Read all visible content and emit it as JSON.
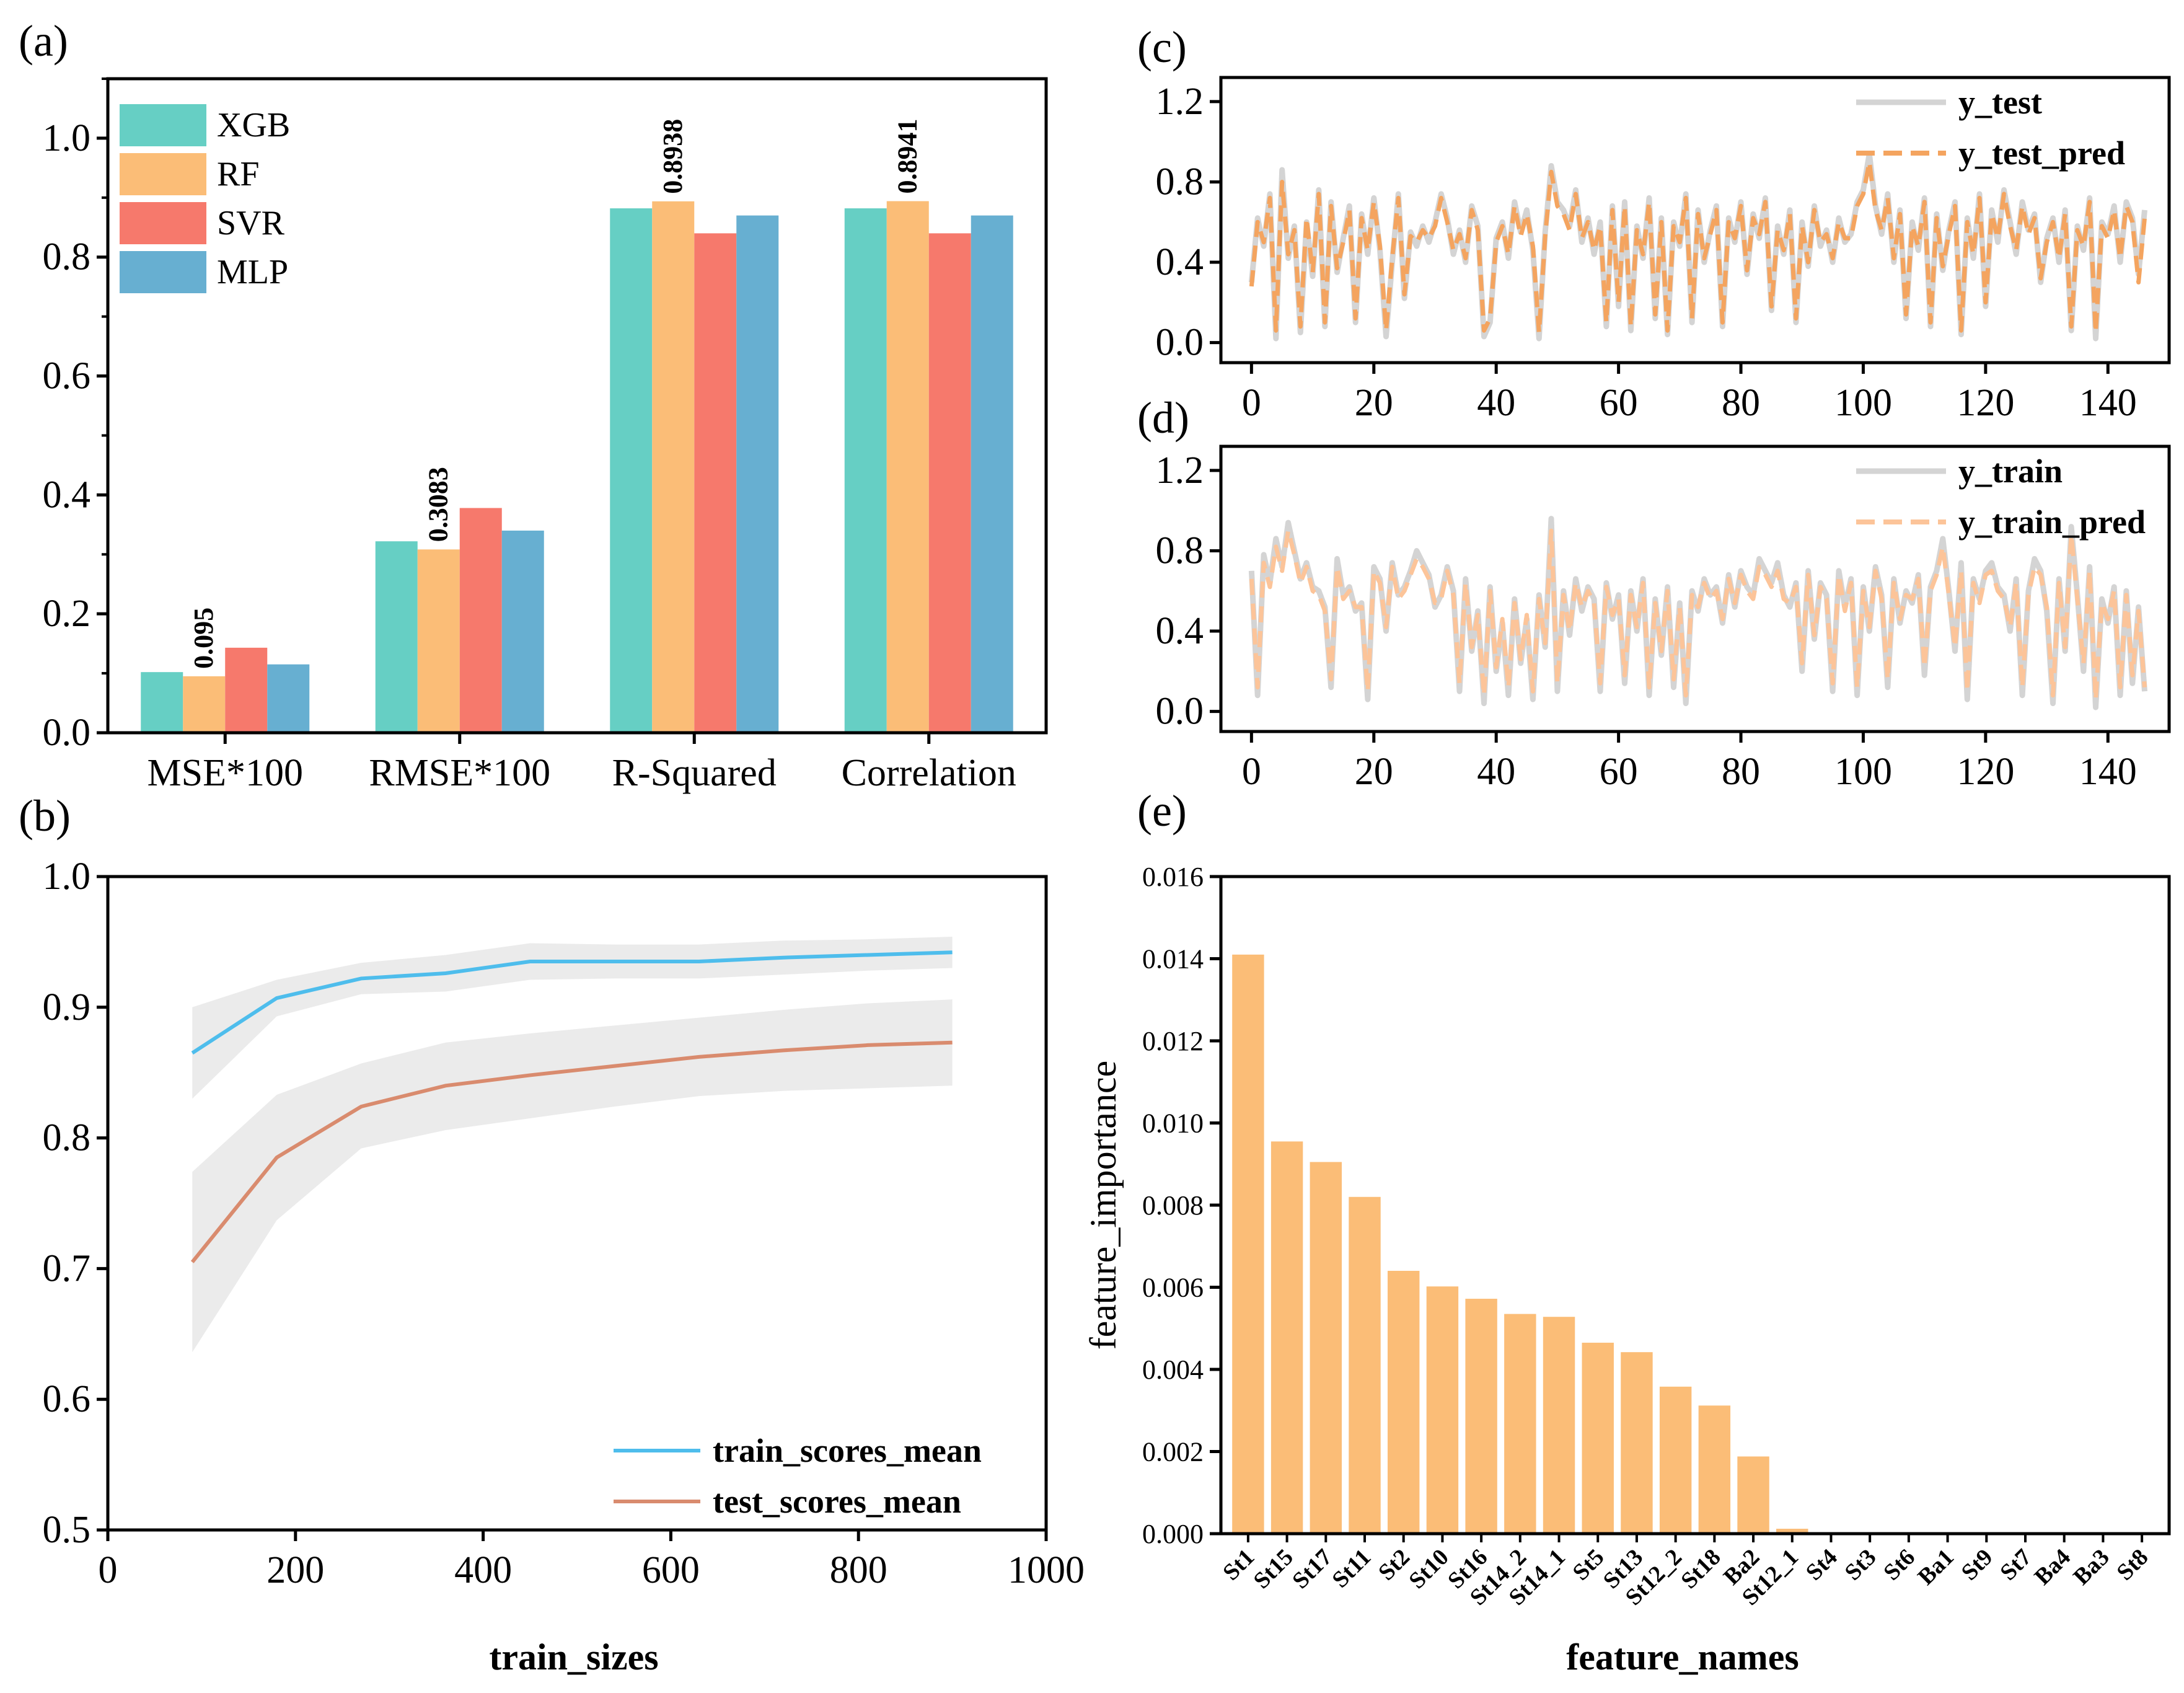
{
  "chart_data": [
    {
      "id": "a",
      "panel_label": "(a)",
      "type": "bar",
      "categories": [
        "MSE*100",
        "RMSE*100",
        "R-Squared",
        "Correlation"
      ],
      "series": [
        {
          "name": "XGB",
          "color": "#66cfc4",
          "values": [
            0.102,
            0.322,
            0.882,
            0.882
          ]
        },
        {
          "name": "RF",
          "color": "#fbbd77",
          "values": [
            0.095,
            0.3083,
            0.8938,
            0.8941
          ]
        },
        {
          "name": "SVR",
          "color": "#f6796c",
          "values": [
            0.143,
            0.378,
            0.84,
            0.84
          ]
        },
        {
          "name": "MLP",
          "color": "#67afd1",
          "values": [
            0.115,
            0.34,
            0.87,
            0.87
          ]
        }
      ],
      "value_labels": [
        {
          "series": "RF",
          "category": "MSE*100",
          "text": "0.095"
        },
        {
          "series": "RF",
          "category": "RMSE*100",
          "text": "0.3083"
        },
        {
          "series": "RF",
          "category": "R-Squared",
          "text": "0.8938"
        },
        {
          "series": "RF",
          "category": "Correlation",
          "text": "0.8941"
        }
      ],
      "ylim": [
        0,
        1.1
      ],
      "yticks": [
        "0.0",
        "0.2",
        "0.4",
        "0.6",
        "0.8",
        "1.0"
      ],
      "legend_position": "top-left"
    },
    {
      "id": "b",
      "panel_label": "(b)",
      "type": "line",
      "xlabel": "train_sizes",
      "ylabel": "",
      "xlim": [
        0,
        1000
      ],
      "ylim": [
        0.5,
        1.0
      ],
      "xticks": [
        "0",
        "200",
        "400",
        "600",
        "800",
        "1000"
      ],
      "yticks": [
        "0.5",
        "0.6",
        "0.7",
        "0.8",
        "0.9",
        "1.0"
      ],
      "x": [
        90,
        180,
        270,
        360,
        450,
        540,
        630,
        720,
        810,
        900
      ],
      "series": [
        {
          "name": "train_scores_mean",
          "color": "#4ebdec",
          "values": [
            0.865,
            0.907,
            0.922,
            0.926,
            0.935,
            0.935,
            0.935,
            0.938,
            0.94,
            0.942
          ],
          "band_low": [
            0.83,
            0.893,
            0.91,
            0.912,
            0.921,
            0.922,
            0.922,
            0.925,
            0.928,
            0.93
          ],
          "band_high": [
            0.9,
            0.921,
            0.934,
            0.94,
            0.949,
            0.948,
            0.948,
            0.951,
            0.952,
            0.954
          ]
        },
        {
          "name": "test_scores_mean",
          "color": "#d98b6e",
          "values": [
            0.705,
            0.785,
            0.824,
            0.84,
            0.848,
            0.855,
            0.862,
            0.867,
            0.871,
            0.873
          ],
          "band_low": [
            0.636,
            0.737,
            0.792,
            0.806,
            0.815,
            0.824,
            0.832,
            0.836,
            0.838,
            0.84
          ],
          "band_high": [
            0.774,
            0.833,
            0.857,
            0.873,
            0.88,
            0.886,
            0.892,
            0.898,
            0.903,
            0.906
          ]
        }
      ],
      "legend_position": "bottom-right"
    },
    {
      "id": "c",
      "panel_label": "(c)",
      "type": "line",
      "xlim": [
        -5,
        150
      ],
      "ylim": [
        -0.1,
        1.32
      ],
      "xticks": [
        "0",
        "20",
        "40",
        "60",
        "80",
        "100",
        "120",
        "140"
      ],
      "yticks": [
        "0.0",
        "0.4",
        "0.8",
        "1.2"
      ],
      "n_points": 147,
      "series": [
        {
          "name": "y_test",
          "color": "#d4d4d4",
          "values": [
            0.3,
            0.62,
            0.48,
            0.74,
            0.02,
            0.86,
            0.42,
            0.58,
            0.05,
            0.6,
            0.33,
            0.76,
            0.08,
            0.7,
            0.35,
            0.52,
            0.68,
            0.1,
            0.64,
            0.44,
            0.72,
            0.46,
            0.03,
            0.4,
            0.74,
            0.22,
            0.55,
            0.48,
            0.58,
            0.5,
            0.6,
            0.74,
            0.62,
            0.44,
            0.56,
            0.4,
            0.68,
            0.58,
            0.03,
            0.1,
            0.52,
            0.6,
            0.42,
            0.7,
            0.55,
            0.66,
            0.46,
            0.02,
            0.55,
            0.88,
            0.7,
            0.66,
            0.58,
            0.76,
            0.5,
            0.62,
            0.44,
            0.6,
            0.08,
            0.68,
            0.18,
            0.7,
            0.06,
            0.58,
            0.42,
            0.72,
            0.12,
            0.62,
            0.04,
            0.6,
            0.48,
            0.74,
            0.1,
            0.66,
            0.4,
            0.56,
            0.68,
            0.08,
            0.62,
            0.5,
            0.7,
            0.34,
            0.64,
            0.52,
            0.72,
            0.16,
            0.58,
            0.44,
            0.66,
            0.1,
            0.6,
            0.38,
            0.68,
            0.48,
            0.56,
            0.4,
            0.62,
            0.5,
            0.54,
            0.7,
            0.76,
            0.94,
            0.68,
            0.54,
            0.74,
            0.4,
            0.66,
            0.12,
            0.6,
            0.46,
            0.72,
            0.08,
            0.64,
            0.36,
            0.56,
            0.7,
            0.04,
            0.62,
            0.42,
            0.74,
            0.18,
            0.66,
            0.5,
            0.76,
            0.6,
            0.44,
            0.7,
            0.56,
            0.64,
            0.3,
            0.52,
            0.62,
            0.4,
            0.66,
            0.06,
            0.58,
            0.46,
            0.72,
            0.02,
            0.6,
            0.54,
            0.68,
            0.4,
            0.7,
            0.62,
            0.34,
            0.66
          ]
        },
        {
          "name": "y_test_pred",
          "color": "#f4a45f",
          "values": [
            0.28,
            0.6,
            0.5,
            0.72,
            0.06,
            0.8,
            0.44,
            0.56,
            0.08,
            0.62,
            0.35,
            0.74,
            0.1,
            0.68,
            0.37,
            0.5,
            0.66,
            0.12,
            0.62,
            0.46,
            0.7,
            0.48,
            0.06,
            0.42,
            0.72,
            0.24,
            0.53,
            0.5,
            0.56,
            0.52,
            0.58,
            0.72,
            0.6,
            0.46,
            0.54,
            0.42,
            0.66,
            0.56,
            0.06,
            0.12,
            0.5,
            0.58,
            0.44,
            0.68,
            0.53,
            0.64,
            0.48,
            0.05,
            0.53,
            0.85,
            0.68,
            0.64,
            0.56,
            0.74,
            0.52,
            0.6,
            0.46,
            0.58,
            0.1,
            0.66,
            0.2,
            0.68,
            0.08,
            0.56,
            0.44,
            0.7,
            0.14,
            0.6,
            0.06,
            0.58,
            0.5,
            0.72,
            0.12,
            0.64,
            0.42,
            0.54,
            0.66,
            0.1,
            0.6,
            0.52,
            0.68,
            0.36,
            0.62,
            0.54,
            0.7,
            0.18,
            0.56,
            0.46,
            0.64,
            0.12,
            0.58,
            0.4,
            0.66,
            0.5,
            0.54,
            0.42,
            0.6,
            0.52,
            0.52,
            0.68,
            0.74,
            0.9,
            0.66,
            0.56,
            0.72,
            0.42,
            0.64,
            0.14,
            0.58,
            0.48,
            0.7,
            0.1,
            0.62,
            0.38,
            0.54,
            0.68,
            0.06,
            0.6,
            0.44,
            0.72,
            0.2,
            0.64,
            0.52,
            0.74,
            0.58,
            0.46,
            0.68,
            0.54,
            0.62,
            0.32,
            0.5,
            0.6,
            0.42,
            0.64,
            0.08,
            0.56,
            0.48,
            0.7,
            0.05,
            0.58,
            0.52,
            0.66,
            0.42,
            0.68,
            0.6,
            0.3,
            0.62
          ]
        }
      ],
      "legend_position": "top-right"
    },
    {
      "id": "d",
      "panel_label": "(d)",
      "type": "line",
      "xlim": [
        -5,
        150
      ],
      "ylim": [
        -0.1,
        1.32
      ],
      "xticks": [
        "0",
        "20",
        "40",
        "60",
        "80",
        "100",
        "120",
        "140"
      ],
      "yticks": [
        "0.0",
        "0.4",
        "0.8",
        "1.2"
      ],
      "n_points": 147,
      "series": [
        {
          "name": "y_train",
          "color": "#d4d4d4",
          "values": [
            0.7,
            0.08,
            0.78,
            0.64,
            0.86,
            0.72,
            0.94,
            0.8,
            0.66,
            0.74,
            0.62,
            0.6,
            0.52,
            0.12,
            0.76,
            0.58,
            0.62,
            0.5,
            0.54,
            0.06,
            0.72,
            0.66,
            0.4,
            0.74,
            0.58,
            0.62,
            0.7,
            0.8,
            0.74,
            0.68,
            0.52,
            0.58,
            0.72,
            0.6,
            0.1,
            0.66,
            0.3,
            0.5,
            0.04,
            0.62,
            0.2,
            0.44,
            0.08,
            0.56,
            0.24,
            0.46,
            0.06,
            0.58,
            0.32,
            0.96,
            0.1,
            0.6,
            0.38,
            0.66,
            0.5,
            0.62,
            0.56,
            0.1,
            0.64,
            0.46,
            0.58,
            0.14,
            0.6,
            0.4,
            0.66,
            0.08,
            0.56,
            0.28,
            0.62,
            0.12,
            0.54,
            0.04,
            0.6,
            0.5,
            0.66,
            0.58,
            0.62,
            0.44,
            0.68,
            0.52,
            0.7,
            0.62,
            0.58,
            0.76,
            0.7,
            0.64,
            0.74,
            0.58,
            0.52,
            0.64,
            0.2,
            0.7,
            0.36,
            0.64,
            0.58,
            0.1,
            0.7,
            0.52,
            0.66,
            0.08,
            0.62,
            0.4,
            0.72,
            0.58,
            0.12,
            0.66,
            0.44,
            0.6,
            0.54,
            0.68,
            0.18,
            0.62,
            0.7,
            0.86,
            0.6,
            0.3,
            0.74,
            0.06,
            0.66,
            0.56,
            0.7,
            0.74,
            0.62,
            0.58,
            0.4,
            0.66,
            0.08,
            0.6,
            0.76,
            0.7,
            0.5,
            0.04,
            0.66,
            0.3,
            0.92,
            0.58,
            0.2,
            0.72,
            0.02,
            0.56,
            0.44,
            0.62,
            0.08,
            0.6,
            0.14,
            0.52,
            0.1
          ]
        },
        {
          "name": "y_train_pred",
          "color": "#fcc499",
          "values": [
            0.66,
            0.12,
            0.74,
            0.62,
            0.82,
            0.7,
            0.9,
            0.78,
            0.64,
            0.72,
            0.6,
            0.58,
            0.5,
            0.16,
            0.72,
            0.56,
            0.6,
            0.52,
            0.52,
            0.1,
            0.7,
            0.64,
            0.42,
            0.72,
            0.56,
            0.6,
            0.68,
            0.76,
            0.72,
            0.66,
            0.54,
            0.56,
            0.7,
            0.58,
            0.14,
            0.64,
            0.32,
            0.48,
            0.08,
            0.6,
            0.22,
            0.46,
            0.12,
            0.54,
            0.26,
            0.48,
            0.1,
            0.56,
            0.34,
            0.9,
            0.14,
            0.58,
            0.4,
            0.64,
            0.52,
            0.6,
            0.54,
            0.14,
            0.62,
            0.48,
            0.56,
            0.18,
            0.58,
            0.42,
            0.64,
            0.12,
            0.54,
            0.3,
            0.6,
            0.16,
            0.52,
            0.08,
            0.58,
            0.52,
            0.64,
            0.56,
            0.6,
            0.46,
            0.66,
            0.54,
            0.68,
            0.6,
            0.56,
            0.72,
            0.68,
            0.62,
            0.7,
            0.56,
            0.54,
            0.62,
            0.24,
            0.68,
            0.38,
            0.62,
            0.56,
            0.14,
            0.68,
            0.5,
            0.64,
            0.12,
            0.6,
            0.42,
            0.7,
            0.56,
            0.16,
            0.64,
            0.46,
            0.58,
            0.56,
            0.66,
            0.22,
            0.6,
            0.68,
            0.82,
            0.58,
            0.32,
            0.7,
            0.1,
            0.64,
            0.54,
            0.68,
            0.7,
            0.6,
            0.56,
            0.42,
            0.64,
            0.12,
            0.58,
            0.72,
            0.68,
            0.52,
            0.08,
            0.64,
            0.32,
            0.88,
            0.56,
            0.24,
            0.7,
            0.06,
            0.54,
            0.46,
            0.6,
            0.12,
            0.58,
            0.18,
            0.5,
            0.12
          ]
        }
      ],
      "legend_position": "top-right"
    },
    {
      "id": "e",
      "panel_label": "(e)",
      "type": "bar",
      "color": "#fbbd77",
      "xlabel": "feature_names",
      "ylabel": "feature_importance",
      "ylim": [
        0,
        0.016
      ],
      "yticks": [
        "0.000",
        "0.002",
        "0.004",
        "0.006",
        "0.008",
        "0.010",
        "0.012",
        "0.014",
        "0.016"
      ],
      "categories": [
        "St1",
        "St15",
        "St17",
        "St11",
        "St2",
        "St10",
        "St16",
        "St14_2",
        "St14_1",
        "St5",
        "St13",
        "St12_2",
        "St18",
        "Ba2",
        "St12_1",
        "St4",
        "St3",
        "St6",
        "Ba1",
        "St9",
        "St7",
        "Ba4",
        "Ba3",
        "St8"
      ],
      "values": [
        0.0141,
        0.00955,
        0.00905,
        0.0082,
        0.0064,
        0.00602,
        0.00572,
        0.00535,
        0.00528,
        0.00465,
        0.00442,
        0.00358,
        0.00312,
        0.00188,
        0.00012,
        3e-05,
        2e-05,
        2e-05,
        1e-05,
        1e-05,
        1e-05,
        1e-05,
        1e-05,
        1e-05
      ]
    }
  ]
}
